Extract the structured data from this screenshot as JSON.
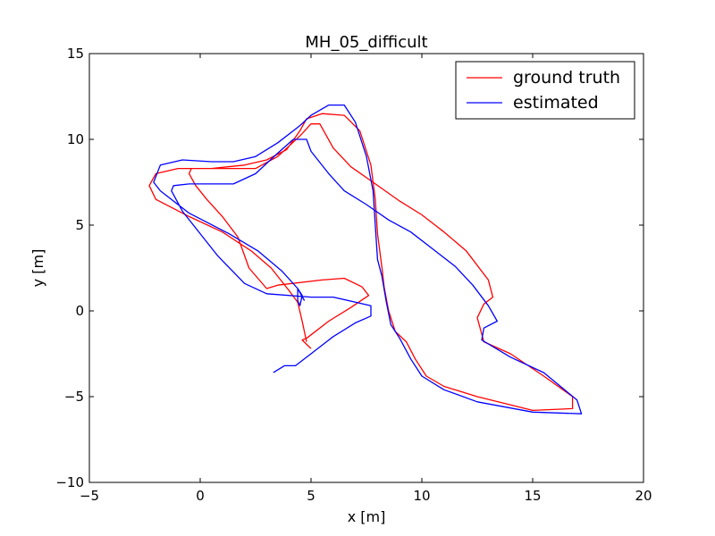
{
  "chart_data": {
    "type": "line",
    "title": "MH_05_difficult",
    "xlabel": "x [m]",
    "ylabel": "y [m]",
    "xlim": [
      -5,
      20
    ],
    "ylim": [
      -10,
      15
    ],
    "xticks": [
      -5,
      0,
      5,
      10,
      15,
      20
    ],
    "yticks": [
      -10,
      -5,
      0,
      5,
      10,
      15
    ],
    "xtick_labels": [
      "−5",
      "0",
      "5",
      "10",
      "15",
      "20"
    ],
    "ytick_labels": [
      "−10",
      "−5",
      "0",
      "5",
      "10",
      "15"
    ],
    "grid": false,
    "legend_position": "top-right",
    "series": [
      {
        "name": "ground truth",
        "color": "#ff0000",
        "points": [
          [
            5.0,
            -2.2
          ],
          [
            4.6,
            -1.7
          ],
          [
            4.8,
            -1.6
          ],
          [
            5.8,
            -0.6
          ],
          [
            6.8,
            0.2
          ],
          [
            7.6,
            0.9
          ],
          [
            7.3,
            1.4
          ],
          [
            6.5,
            1.9
          ],
          [
            5.5,
            1.8
          ],
          [
            3.5,
            1.5
          ],
          [
            3.0,
            1.3
          ],
          [
            2.2,
            2.5
          ],
          [
            1.7,
            4.3
          ],
          [
            1.0,
            5.5
          ],
          [
            0.3,
            6.5
          ],
          [
            -0.2,
            7.3
          ],
          [
            -0.5,
            8.0
          ],
          [
            -0.4,
            8.3
          ],
          [
            1.0,
            8.3
          ],
          [
            2.5,
            8.3
          ],
          [
            3.5,
            9.0
          ],
          [
            4.5,
            10.2
          ],
          [
            5.0,
            10.9
          ],
          [
            5.4,
            10.9
          ],
          [
            6.0,
            9.5
          ],
          [
            6.8,
            8.4
          ],
          [
            7.8,
            7.5
          ],
          [
            9.0,
            6.4
          ],
          [
            10.0,
            5.6
          ],
          [
            11.0,
            4.6
          ],
          [
            12.0,
            3.5
          ],
          [
            13.0,
            1.8
          ],
          [
            13.2,
            0.8
          ],
          [
            12.8,
            0.4
          ],
          [
            12.5,
            -0.4
          ],
          [
            12.8,
            -1.8
          ],
          [
            14.0,
            -2.5
          ],
          [
            15.5,
            -3.8
          ],
          [
            16.8,
            -5.0
          ],
          [
            16.8,
            -5.7
          ],
          [
            15.0,
            -5.8
          ],
          [
            12.5,
            -5.0
          ],
          [
            11.0,
            -4.4
          ],
          [
            10.2,
            -3.8
          ],
          [
            9.7,
            -2.8
          ],
          [
            9.3,
            -1.8
          ],
          [
            8.8,
            -1.2
          ],
          [
            8.5,
            0.0
          ],
          [
            8.3,
            1.4
          ],
          [
            8.2,
            2.5
          ],
          [
            8.0,
            4.5
          ],
          [
            7.9,
            6.5
          ],
          [
            7.7,
            8.5
          ],
          [
            7.2,
            10.5
          ],
          [
            6.5,
            11.4
          ],
          [
            5.5,
            11.5
          ],
          [
            4.8,
            11.2
          ],
          [
            4.5,
            10.5
          ],
          [
            3.9,
            9.4
          ],
          [
            3.0,
            8.8
          ],
          [
            2.0,
            8.5
          ],
          [
            0.5,
            8.3
          ],
          [
            -1.0,
            8.3
          ],
          [
            -2.0,
            8.0
          ],
          [
            -2.3,
            7.3
          ],
          [
            -2.0,
            6.5
          ],
          [
            -0.5,
            5.5
          ],
          [
            1.0,
            4.6
          ],
          [
            2.3,
            3.5
          ],
          [
            3.2,
            2.5
          ],
          [
            4.0,
            1.2
          ],
          [
            4.4,
            0.5
          ],
          [
            4.6,
            -0.6
          ],
          [
            4.8,
            -1.8
          ]
        ]
      },
      {
        "name": "estimated",
        "color": "#0000ff",
        "points": [
          [
            3.3,
            -3.6
          ],
          [
            3.8,
            -3.2
          ],
          [
            4.3,
            -3.2
          ],
          [
            5.0,
            -2.5
          ],
          [
            6.0,
            -1.5
          ],
          [
            7.0,
            -0.7
          ],
          [
            7.7,
            -0.3
          ],
          [
            7.7,
            0.3
          ],
          [
            6.0,
            0.8
          ],
          [
            5.0,
            0.8
          ],
          [
            3.0,
            1.0
          ],
          [
            2.0,
            1.6
          ],
          [
            0.8,
            3.2
          ],
          [
            0.0,
            4.5
          ],
          [
            -0.8,
            5.8
          ],
          [
            -1.3,
            7.0
          ],
          [
            -1.2,
            7.3
          ],
          [
            -0.5,
            7.4
          ],
          [
            1.5,
            7.4
          ],
          [
            2.5,
            8.0
          ],
          [
            3.5,
            9.2
          ],
          [
            4.2,
            10.0
          ],
          [
            4.8,
            10.0
          ],
          [
            5.0,
            9.3
          ],
          [
            5.8,
            8.0
          ],
          [
            6.5,
            7.0
          ],
          [
            7.5,
            6.2
          ],
          [
            8.5,
            5.3
          ],
          [
            9.5,
            4.6
          ],
          [
            10.5,
            3.6
          ],
          [
            11.5,
            2.6
          ],
          [
            12.3,
            1.5
          ],
          [
            13.0,
            0.3
          ],
          [
            13.4,
            -0.6
          ],
          [
            12.8,
            -1.0
          ],
          [
            12.7,
            -1.7
          ],
          [
            14.0,
            -2.7
          ],
          [
            15.5,
            -3.6
          ],
          [
            17.0,
            -5.2
          ],
          [
            17.2,
            -6.0
          ],
          [
            15.0,
            -5.9
          ],
          [
            12.5,
            -5.3
          ],
          [
            11.0,
            -4.6
          ],
          [
            10.0,
            -3.8
          ],
          [
            9.5,
            -2.8
          ],
          [
            9.0,
            -1.6
          ],
          [
            8.6,
            -0.8
          ],
          [
            8.4,
            0.5
          ],
          [
            8.2,
            2.0
          ],
          [
            8.0,
            3.0
          ],
          [
            7.9,
            5.0
          ],
          [
            7.8,
            7.0
          ],
          [
            7.5,
            9.0
          ],
          [
            7.0,
            11.0
          ],
          [
            6.5,
            12.0
          ],
          [
            5.8,
            12.0
          ],
          [
            5.0,
            11.4
          ],
          [
            4.5,
            10.8
          ],
          [
            3.5,
            9.8
          ],
          [
            2.5,
            9.0
          ],
          [
            1.5,
            8.7
          ],
          [
            0.5,
            8.7
          ],
          [
            -0.8,
            8.8
          ],
          [
            -1.8,
            8.5
          ],
          [
            -2.1,
            7.5
          ],
          [
            -1.8,
            7.0
          ],
          [
            -0.5,
            5.7
          ],
          [
            1.3,
            4.5
          ],
          [
            2.6,
            3.5
          ],
          [
            3.7,
            2.3
          ],
          [
            4.4,
            1.3
          ],
          [
            4.4,
            0.6
          ],
          [
            4.5,
            0.3
          ],
          [
            4.6,
            0.9
          ],
          [
            4.4,
            1.3
          ],
          [
            4.7,
            0.6
          ]
        ]
      }
    ]
  }
}
